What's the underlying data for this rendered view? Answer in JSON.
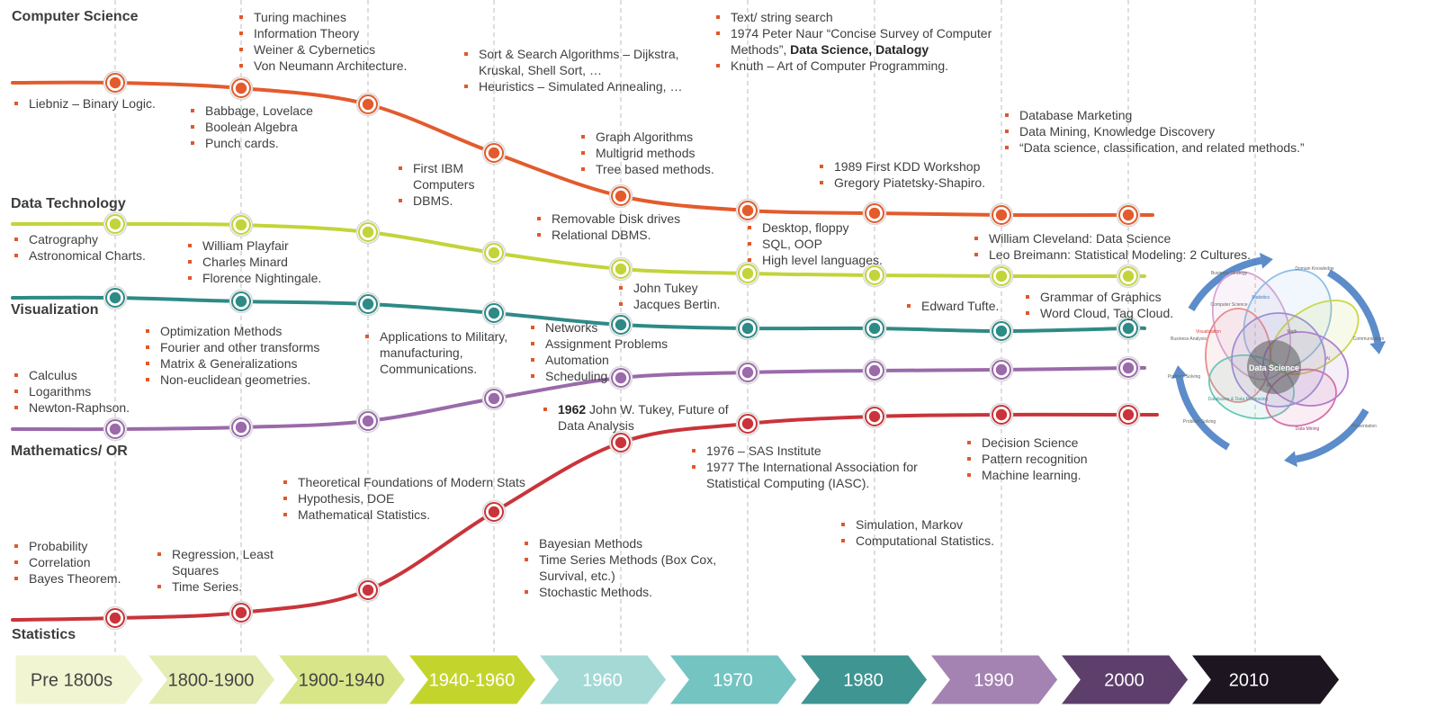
{
  "tracks": {
    "computer_science": {
      "label": "Computer Science",
      "color": "#e35b2c"
    },
    "data_technology": {
      "label": "Data Technology",
      "color": "#c2d43a"
    },
    "visualization": {
      "label": "Visualization",
      "color": "#2e8a86"
    },
    "mathematics_or": {
      "label": "Mathematics/ OR",
      "color": "#9a6aaa"
    },
    "statistics": {
      "label": "Statistics",
      "color": "#c9343a"
    }
  },
  "eras": [
    {
      "label": "Pre 1800s",
      "color": "#f1f5d2",
      "text_color": "#444444"
    },
    {
      "label": "1800-1900",
      "color": "#e5edb4",
      "text_color": "#444444"
    },
    {
      "label": "1900-1940",
      "color": "#d8e689",
      "text_color": "#444444"
    },
    {
      "label": "1940-1960",
      "color": "#c3d52c",
      "text_color": "#ffffff"
    },
    {
      "label": "1960",
      "color": "#a5d9d6",
      "text_color": "#ffffff"
    },
    {
      "label": "1970",
      "color": "#74c4c2",
      "text_color": "#ffffff"
    },
    {
      "label": "1980",
      "color": "#3f9592",
      "text_color": "#ffffff"
    },
    {
      "label": "1990",
      "color": "#a483b2",
      "text_color": "#ffffff"
    },
    {
      "label": "2000",
      "color": "#5e3f6c",
      "text_color": "#ffffff"
    },
    {
      "label": "2010",
      "color": "#1d1520",
      "text_color": "#ffffff"
    }
  ],
  "notes": {
    "cs_pre1800": [
      "Liebniz – Binary Logic."
    ],
    "cs_1800_top": [
      "Turing machines",
      "Information Theory",
      "Weiner & Cybernetics",
      "Von Neumann Architecture."
    ],
    "cs_1800_bottom": [
      "Babbage, Lovelace",
      "Boolean Algebra",
      "Punch cards."
    ],
    "cs_1940_top": [
      "Sort & Search Algorithms – Dijkstra, Kruskal, Shell Sort, …",
      "Heuristics – Simulated Annealing, …"
    ],
    "cs_1940_bottom": [
      "First IBM Computers",
      "DBMS."
    ],
    "cs_1960": [
      "Graph Algorithms",
      "Multigrid methods",
      "Tree based methods."
    ],
    "cs_1970_top": {
      "item1": "Text/ string search",
      "item2_text": "1974 Peter Naur “Concise Survey of Computer Methods”, ",
      "item2_bold": "Data Science, Datalogy",
      "item3": "Knuth – Art of Computer Programming."
    },
    "cs_1980": [
      "1989 First KDD Workshop",
      "Gregory Piatetsky-Shapiro."
    ],
    "cs_1990": [
      "Database Marketing",
      "Data Mining, Knowledge Discovery",
      "“Data science, classification, and related methods.”"
    ],
    "dt_pre1800": [
      "Catrography",
      "Astronomical Charts."
    ],
    "dt_1800": [
      "William Playfair",
      "Charles Minard",
      "Florence Nightingale."
    ],
    "dt_1960": [
      "Removable Disk drives",
      "Relational DBMS."
    ],
    "dt_1970": [
      "Desktop, floppy",
      "SQL, OOP",
      "High level languages."
    ],
    "dt_1990": [
      "William Cleveland: Data Science",
      "Leo Breimann: Statistical Modeling: 2 Cultures."
    ],
    "vis_1960": [
      "John Tukey",
      "Jacques Bertin."
    ],
    "vis_1980": [
      "Edward Tufte."
    ],
    "vis_1990": [
      "Grammar of Graphics",
      "Word Cloud, Tag Cloud."
    ],
    "math_pre1800": [
      "Calculus",
      "Logarithms",
      "Newton-Raphson."
    ],
    "math_1800": [
      "Optimization Methods",
      "Fourier and other transforms",
      "Matrix & Generalizations",
      "Non-euclidean geometries."
    ],
    "math_1900": [
      "Applications to Military, manufacturing, Communications."
    ],
    "math_1940": [
      "Networks",
      "Assignment Problems",
      "Automation",
      "Scheduling"
    ],
    "stat_1960_tukey": {
      "bold": "1962",
      "text": " John W. Tukey, Future of Data Analysis"
    },
    "stat_1970": [
      "1976 – SAS Institute",
      "1977 The International Association for Statistical Computing (IASC)."
    ],
    "stat_1990": [
      "Decision Science",
      "Pattern recognition",
      "Machine learning."
    ],
    "stat_1900": [
      "Theoretical Foundations of Modern Stats",
      "Hypothesis, DOE",
      "Mathematical Statistics."
    ],
    "stat_1980": [
      "Simulation, Markov",
      "Computational Statistics."
    ],
    "stat_pre1800": [
      "Probability",
      "Correlation",
      "Bayes Theorem."
    ],
    "stat_1800": [
      "Regression, Least Squares",
      "Time Series."
    ],
    "stat_1940": [
      "Bayesian Methods",
      "Time Series Methods (Box Cox, Survival, etc.)",
      "Stochastic Methods."
    ]
  },
  "venn": {
    "center_label": "Data Science",
    "labels": [
      "Business Strategy",
      "Domain Knowledge",
      "Statistics",
      "Problem Solving",
      "Visualization",
      "Business Analysis",
      "Computer Science",
      "Communication",
      "Math",
      "AI",
      "Databases & Data Processing",
      "ML",
      "Data Mining",
      "Presentation",
      "Problem Solving"
    ]
  }
}
